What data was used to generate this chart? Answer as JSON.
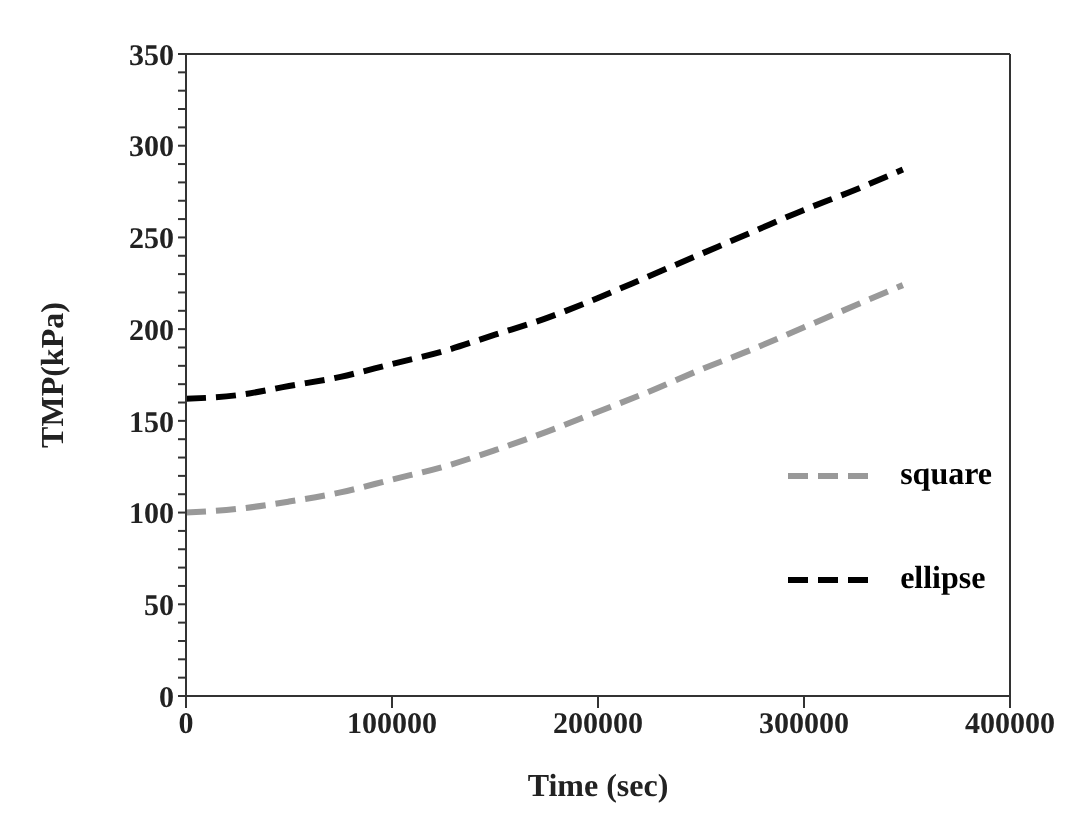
{
  "chart_data": {
    "type": "line",
    "xlabel": "Time (sec)",
    "ylabel": "TMP(kPa)",
    "x": [
      0,
      25000,
      50000,
      75000,
      100000,
      125000,
      150000,
      175000,
      200000,
      225000,
      250000,
      275000,
      300000,
      325000,
      348000
    ],
    "series": [
      {
        "name": "square",
        "color": "#999999",
        "line_style": "dashed",
        "values": [
          100,
          102,
          106,
          111,
          118,
          125,
          134,
          144,
          155,
          166,
          178,
          189,
          201,
          213,
          224
        ]
      },
      {
        "name": "ellipse",
        "color": "#000000",
        "line_style": "dashed",
        "values": [
          162,
          164,
          169,
          174,
          181,
          188,
          197,
          206,
          217,
          229,
          241,
          253,
          265,
          276,
          287
        ]
      }
    ],
    "xlim": [
      0,
      400000
    ],
    "xticks": [
      0,
      100000,
      200000,
      300000,
      400000
    ],
    "ylim": [
      0,
      350
    ],
    "yticks": [
      0,
      {
        "value": 10,
        "label": null
      },
      {
        "value": 20,
        "label": null
      },
      {
        "value": 30,
        "label": null
      },
      {
        "value": 40,
        "label": null
      },
      50,
      {
        "value": 60,
        "label": null
      },
      {
        "value": 70,
        "label": null
      },
      {
        "value": 80,
        "label": null
      },
      {
        "value": 90,
        "label": null
      },
      100,
      {
        "value": 110,
        "label": null
      },
      {
        "value": 120,
        "label": null
      },
      {
        "value": 130,
        "label": null
      },
      {
        "value": 140,
        "label": null
      },
      150,
      {
        "value": 160,
        "label": null
      },
      {
        "value": 170,
        "label": null
      },
      {
        "value": 180,
        "label": null
      },
      {
        "value": 190,
        "label": null
      },
      200,
      {
        "value": 210,
        "label": null
      },
      {
        "value": 220,
        "label": null
      },
      {
        "value": 230,
        "label": null
      },
      {
        "value": 240,
        "label": null
      },
      250,
      {
        "value": 260,
        "label": null
      },
      {
        "value": 270,
        "label": null
      },
      {
        "value": 280,
        "label": null
      },
      {
        "value": 290,
        "label": null
      },
      300,
      {
        "value": 310,
        "label": null
      },
      {
        "value": 320,
        "label": null
      },
      {
        "value": 330,
        "label": null
      },
      {
        "value": 340,
        "label": null
      },
      350
    ],
    "grid": false,
    "legend": "bottom right",
    "marker": "none"
  }
}
